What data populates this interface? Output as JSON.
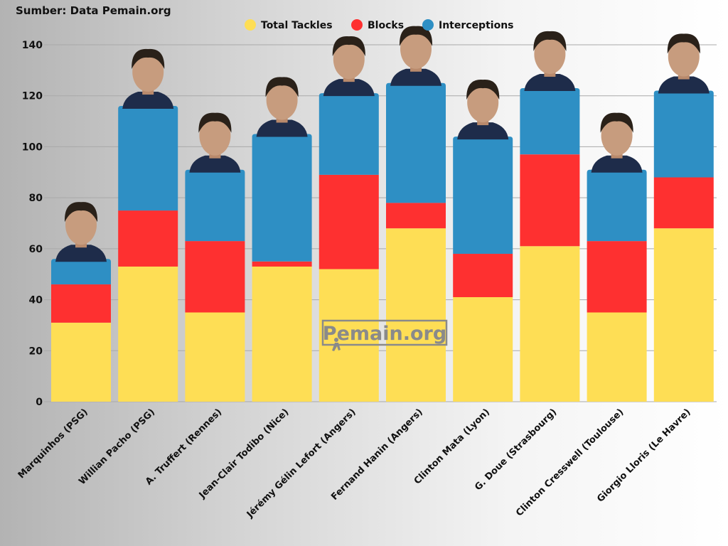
{
  "source": "Sumber: Data Pemain.org",
  "watermark": "Pemain.org",
  "chart_data": {
    "type": "bar",
    "stacked": true,
    "title": "",
    "xlabel": "",
    "ylabel": "",
    "ylim": [
      0,
      140
    ],
    "yticks": [
      0,
      20,
      40,
      60,
      80,
      100,
      120,
      140
    ],
    "grid": true,
    "legend": "top-center",
    "categories": [
      "Marquinhos (PSG)",
      "Willian Pacho (PSG)",
      "A. Truffert (Rennes)",
      "Jean-Clair Todibo (Nice)",
      "Jérémy Gélin Lefort (Angers)",
      "Fernand Hanin (Angers)",
      "Clinton Mata (Lyon)",
      "G. Doue (Strasbourg)",
      "Clinton Cresswell (Toulouse)",
      "Giorgio Lloris (Le Havre)"
    ],
    "series": [
      {
        "name": "Total Tackles",
        "color": "#fede55",
        "values": [
          31,
          53,
          35,
          53,
          52,
          68,
          41,
          61,
          35,
          68
        ]
      },
      {
        "name": "Blocks",
        "color": "#fe3030",
        "values": [
          15,
          22,
          28,
          2,
          37,
          10,
          17,
          36,
          28,
          20
        ]
      },
      {
        "name": "Interceptions",
        "color": "#2e8fc4",
        "values": [
          10,
          41,
          28,
          50,
          32,
          47,
          46,
          26,
          28,
          34
        ]
      }
    ]
  }
}
